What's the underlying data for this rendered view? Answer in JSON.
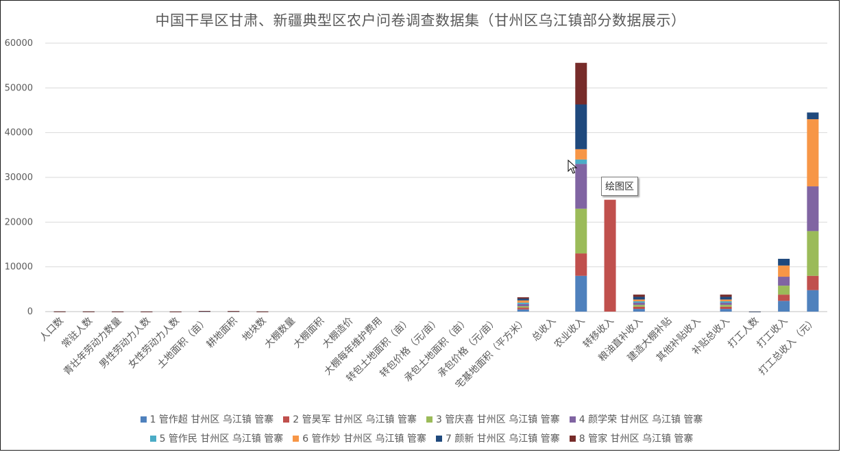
{
  "chart_data": {
    "type": "bar",
    "stacked": true,
    "title": "中国干旱区甘肃、新疆典型区农户问卷调查数据集（甘州区乌江镇部分数据展示）",
    "ylim": [
      0,
      60000
    ],
    "yticks": [
      0,
      10000,
      20000,
      30000,
      40000,
      50000,
      60000
    ],
    "grid": true,
    "legend_position": "bottom",
    "categories": [
      "人口数",
      "常驻人数",
      "青壮年劳动力数量",
      "男性劳动力人数",
      "女性劳动力人数",
      "土地面积（亩）",
      "耕地面积",
      "地块数",
      "大棚数量",
      "大棚面积",
      "大棚造价",
      "大棚每年维护费用",
      "转包土地面积（亩）",
      "转包价格（元/亩）",
      "承包土地面积（亩）",
      "承包价格（元/亩）",
      "宅基地面积（平方米）",
      "总收入",
      "农业收入",
      "转移收入",
      "粮油直补收入",
      "建造大棚补贴",
      "其他补贴收入",
      "补贴总收入",
      "打工人数",
      "打工收入",
      "打工总收入（元）"
    ],
    "series": [
      {
        "name": "1 管作超 甘州区 乌江镇 管寨",
        "color": "#4f81bd",
        "values": [
          5,
          4,
          2,
          2,
          1,
          20,
          15,
          3,
          0,
          0,
          0,
          0,
          0,
          0,
          0,
          0,
          500,
          0,
          8000,
          0,
          600,
          0,
          0,
          600,
          1,
          2400,
          4800
        ]
      },
      {
        "name": "2 管昊军 甘州区 乌江镇 管寨",
        "color": "#c0504d",
        "values": [
          5,
          5,
          3,
          2,
          1,
          20,
          15,
          4,
          0,
          0,
          0,
          0,
          0,
          0,
          0,
          0,
          400,
          0,
          5000,
          25000,
          500,
          0,
          0,
          500,
          1,
          1400,
          3200
        ]
      },
      {
        "name": "3 管庆喜 甘州区 乌江镇 管寨",
        "color": "#9bbb59",
        "values": [
          4,
          3,
          2,
          1,
          1,
          15,
          12,
          3,
          0,
          0,
          0,
          0,
          0,
          0,
          0,
          0,
          300,
          0,
          10000,
          0,
          400,
          0,
          0,
          400,
          1,
          2000,
          10000
        ]
      },
      {
        "name": "4 颜学荣 甘州区 乌江镇 管寨",
        "color": "#8064a2",
        "values": [
          5,
          4,
          2,
          1,
          1,
          20,
          15,
          3,
          0,
          0,
          0,
          0,
          0,
          0,
          0,
          0,
          500,
          0,
          10000,
          0,
          500,
          0,
          0,
          500,
          1,
          2000,
          10000
        ]
      },
      {
        "name": "5 管作民 甘州区 乌江镇 管寨",
        "color": "#4bacc6",
        "values": [
          3,
          3,
          2,
          1,
          1,
          10,
          8,
          2,
          0,
          0,
          0,
          0,
          0,
          0,
          0,
          0,
          300,
          0,
          1000,
          0,
          300,
          0,
          0,
          300,
          0,
          0,
          0
        ]
      },
      {
        "name": "6 管作妙 甘州区 乌江镇 管寨",
        "color": "#f79646",
        "values": [
          6,
          5,
          3,
          2,
          1,
          25,
          20,
          3,
          0,
          0,
          0,
          0,
          0,
          0,
          0,
          0,
          500,
          0,
          2300,
          0,
          400,
          0,
          0,
          400,
          1,
          2500,
          15000
        ]
      },
      {
        "name": "7 颜新 甘州区 乌江镇 管寨",
        "color": "#1f497d",
        "values": [
          5,
          4,
          3,
          2,
          1,
          25,
          20,
          3,
          0,
          0,
          0,
          0,
          0,
          0,
          0,
          0,
          400,
          0,
          10000,
          0,
          600,
          0,
          0,
          600,
          1,
          1500,
          1500
        ]
      },
      {
        "name": "8 管家 甘州区 乌江镇 管寨",
        "color": "#772c2a",
        "values": [
          4,
          3,
          2,
          1,
          1,
          15,
          12,
          2,
          0,
          0,
          0,
          0,
          0,
          0,
          0,
          0,
          300,
          0,
          9300,
          0,
          500,
          0,
          0,
          500,
          0,
          0,
          0
        ]
      }
    ]
  },
  "tooltip": {
    "label": "绘图区"
  }
}
